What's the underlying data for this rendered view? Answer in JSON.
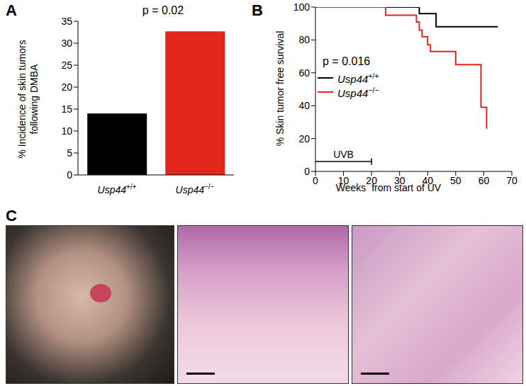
{
  "chart_data": [
    {
      "panel": "A",
      "type": "bar",
      "categories": [
        "Usp44+/+",
        "Usp44−/−"
      ],
      "values": [
        14,
        32.7
      ],
      "colors": [
        "#000000",
        "#e3261c"
      ],
      "ylabel": "% Incidence of skin tumors\nfollowing DMBA",
      "ylim": [
        0,
        35
      ],
      "yticks": [
        0,
        5,
        10,
        15,
        20,
        25,
        30,
        35
      ],
      "annotations": [
        {
          "text": "p = 0.02"
        }
      ]
    },
    {
      "panel": "B",
      "type": "line",
      "line_style": "step",
      "xlabel": "Weeks  from start of UV",
      "ylabel": "% Skin tumor free survival",
      "xlim": [
        0,
        70
      ],
      "xticks": [
        0,
        10,
        20,
        30,
        40,
        50,
        60,
        70
      ],
      "ylim": [
        0,
        100
      ],
      "yticks": [
        0,
        20,
        40,
        60,
        80,
        100
      ],
      "legend": "left",
      "series": [
        {
          "name": "Usp44+/+",
          "color": "#000000",
          "x": [
            0,
            37,
            43,
            65
          ],
          "values": [
            100,
            96,
            88,
            88
          ]
        },
        {
          "name": "Usp44−/−",
          "color": "#e3261c",
          "x": [
            0,
            25,
            36,
            37,
            38,
            40,
            41,
            50,
            59,
            61
          ],
          "values": [
            100,
            95,
            91,
            86,
            82,
            77,
            73,
            65,
            39,
            26
          ]
        }
      ],
      "annotations": [
        {
          "text": "p = 0.016"
        },
        {
          "text": "UVB",
          "x": [
            0,
            20
          ]
        }
      ]
    }
  ],
  "images": {
    "panel": "C"
  }
}
